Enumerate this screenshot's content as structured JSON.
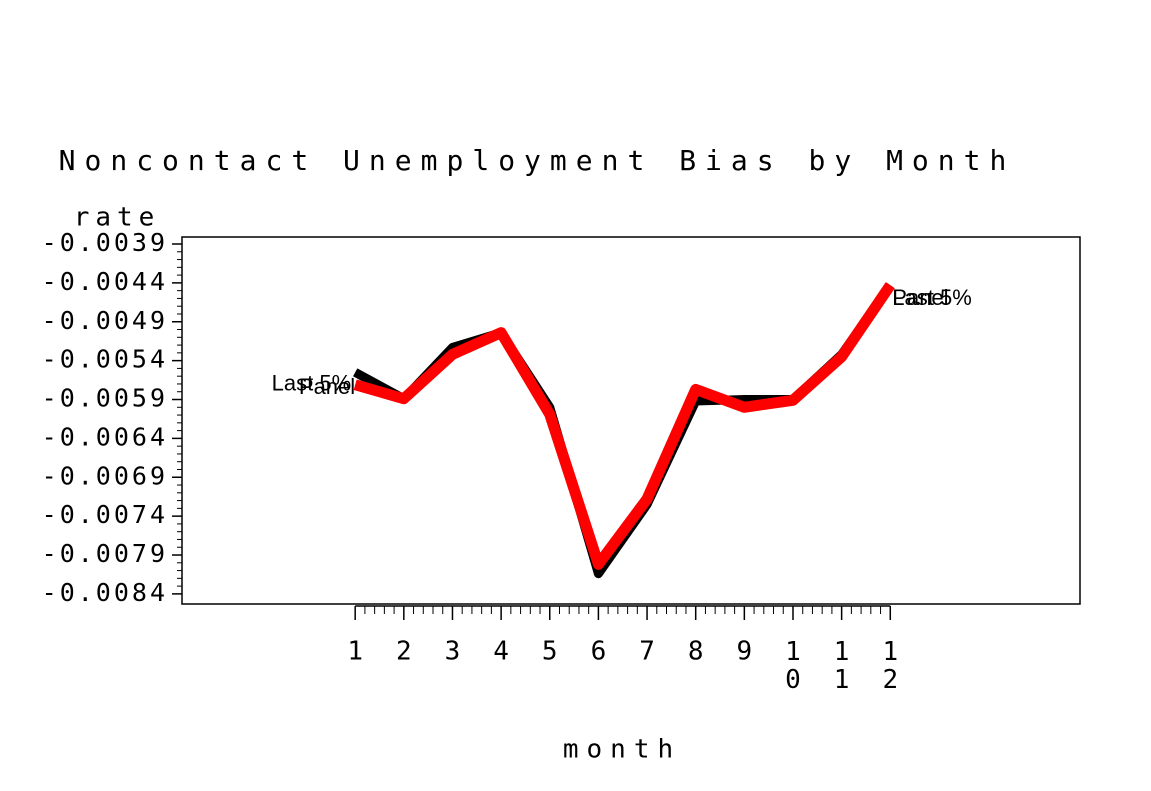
{
  "chart_data": {
    "type": "line",
    "title": "Noncontact Unemployment Bias by Month",
    "y_label": "rate",
    "x_label": "month",
    "x": [
      1,
      2,
      3,
      4,
      5,
      6,
      7,
      8,
      9,
      10,
      11,
      12
    ],
    "xlim": [
      -2.56,
      15.9
    ],
    "xticks": [
      1,
      2,
      3,
      4,
      5,
      6,
      7,
      8,
      9,
      10,
      11,
      12
    ],
    "ylim": [
      -0.00853,
      -0.00381
    ],
    "yticks": [
      -0.0039,
      -0.0044,
      -0.0049,
      -0.0054,
      -0.0059,
      -0.0064,
      -0.0069,
      -0.0074,
      -0.0079,
      -0.0084
    ],
    "series": [
      {
        "name": "Panel",
        "color": "#000000",
        "values": [
          -0.00555,
          -0.00589,
          -0.00523,
          -0.00504,
          -0.006,
          -0.00814,
          -0.00725,
          -0.00592,
          -0.0059,
          -0.0059,
          -0.00532,
          -0.00443
        ]
      },
      {
        "name": "Last 5%",
        "color": "#ff0000",
        "values": [
          -0.00571,
          -0.00589,
          -0.00532,
          -0.00504,
          -0.00609,
          -0.00802,
          -0.00718,
          -0.00577,
          -0.006,
          -0.00591,
          -0.00535,
          -0.00443
        ]
      }
    ]
  }
}
